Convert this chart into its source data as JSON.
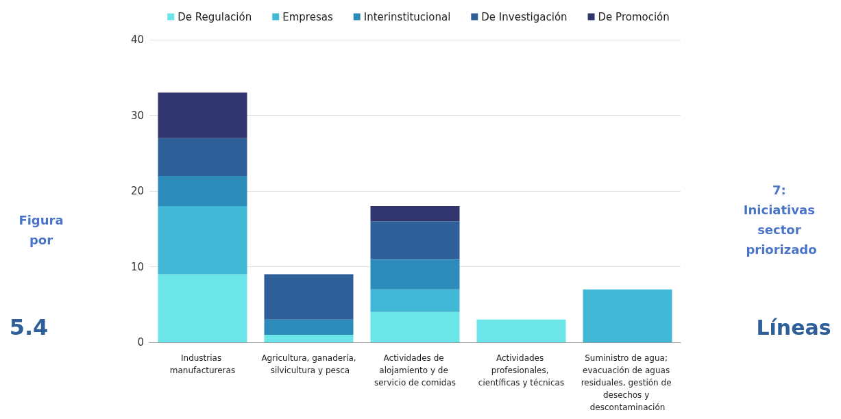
{
  "chart_data": {
    "type": "bar",
    "stacked": true,
    "categories": [
      "Industrias manufactureras",
      "Agricultura, ganadería, silvicultura y pesca",
      "Actividades de alojamiento y de servicio de comidas",
      "Actividades profesionales, científicas y técnicas",
      "Suministro de agua; evacuación de aguas residuales, gestión de desechos y descontaminación"
    ],
    "series": [
      {
        "name": "De Regulación",
        "color": "#6ce5e8",
        "values": [
          9,
          1,
          4,
          3,
          null
        ]
      },
      {
        "name": "Empresas",
        "color": "#41b8d5",
        "values": [
          9,
          null,
          3,
          null,
          7
        ]
      },
      {
        "name": "Interinstitucional",
        "color": "#2d8bba",
        "values": [
          4,
          2,
          4,
          null,
          null
        ]
      },
      {
        "name": "De Investigación",
        "color": "#2f5f98",
        "values": [
          5,
          6,
          5,
          null,
          null
        ]
      },
      {
        "name": "De Promoción",
        "color": "#31356e",
        "values": [
          6,
          null,
          2,
          null,
          null
        ]
      }
    ],
    "ylim": [
      0,
      40
    ],
    "yticks": [
      0,
      10,
      20,
      30,
      40
    ],
    "grid": "y",
    "legend": "top",
    "annotations": [
      "Figura",
      "por",
      "5.4",
      "7: Iniciativas sector priorizado",
      "Líneas"
    ]
  }
}
